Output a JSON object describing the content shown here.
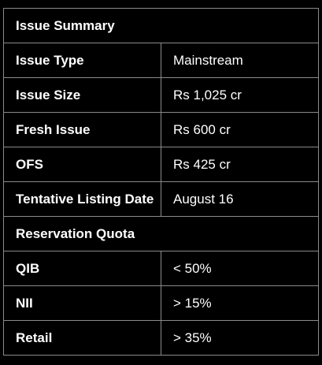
{
  "title": "Issue Summary",
  "issue_details": [
    {
      "label": "Issue Type",
      "value": "Mainstream"
    },
    {
      "label": "Issue Size",
      "value": "Rs 1,025 cr"
    },
    {
      "label": "Fresh Issue",
      "value": "Rs 600 cr"
    },
    {
      "label": "OFS",
      "value": "Rs 425 cr"
    },
    {
      "label": "Tentative Listing Date",
      "value": "August 16"
    }
  ],
  "reservation_heading": "Reservation Quota",
  "reservation": [
    {
      "label": "QIB",
      "value": "< 50%"
    },
    {
      "label": "NII",
      "value": "> 15%"
    },
    {
      "label": "Retail",
      "value": "> 35%"
    }
  ]
}
